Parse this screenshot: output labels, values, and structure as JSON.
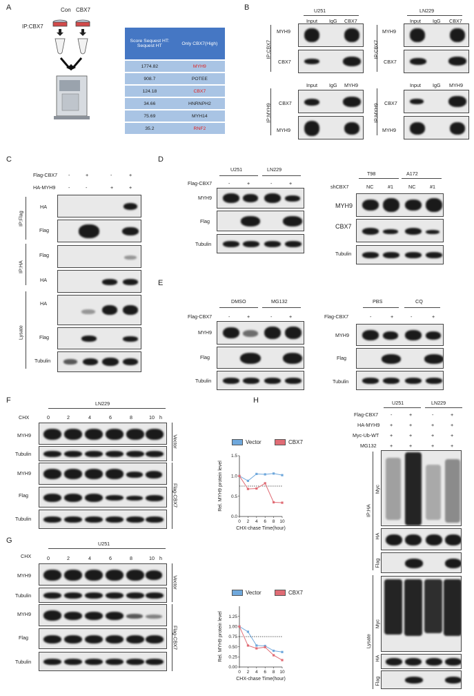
{
  "panels": {
    "A": "A",
    "B": "B",
    "C": "C",
    "D": "D",
    "E": "E",
    "F": "F",
    "G": "G",
    "H": "H"
  },
  "A": {
    "con": "Con",
    "cbx7": "CBX7",
    "ip": "IP:CBX7",
    "table": {
      "header": [
        "Score Sequest HT: Sequest HT",
        "Only CBX7(High)"
      ],
      "rows": [
        {
          "score": "1774.82",
          "protein": "MYH9",
          "highlight": true
        },
        {
          "score": "908.7",
          "protein": "POTEE",
          "highlight": false
        },
        {
          "score": "124.18",
          "protein": "CBX7",
          "highlight": true
        },
        {
          "score": "34.66",
          "protein": "HNRNPH2",
          "highlight": false
        },
        {
          "score": "75.69",
          "protein": "MYH14",
          "highlight": false
        },
        {
          "score": "35.2",
          "protein": "RNF2",
          "highlight": true
        }
      ]
    }
  },
  "B": {
    "u251": "U251",
    "ln229": "LN229",
    "lanes1": [
      "Input",
      "IgG",
      "CBX7"
    ],
    "lanes2": [
      "Input",
      "IgG",
      "MYH9"
    ],
    "ip_cbx7": "IP:CBX7",
    "ip_myh9": "IP:MYH9",
    "row_myh9": "MYH9",
    "row_cbx7": "CBX7"
  },
  "C": {
    "flag_cbx7": "Flag-CBX7",
    "ha_myh9": "HA-MYH9",
    "signs_flag": [
      "-",
      "+",
      "-",
      "+"
    ],
    "signs_ha": [
      "-",
      "-",
      "+",
      "+"
    ],
    "ip_flag": "IP:Flag",
    "ip_ha": "IP:HA",
    "lysate": "Lysate",
    "ha": "HA",
    "flag": "Flag",
    "tubulin": "Tubulin"
  },
  "D": {
    "u251": "U251",
    "ln229": "LN229",
    "t98": "T98",
    "a172": "A172",
    "flag_cbx7": "Flag-CBX7",
    "signs": [
      "-",
      "+",
      "-",
      "+"
    ],
    "shcbx7": "shCBX7",
    "sh_lanes": [
      "NC",
      "#1",
      "NC",
      "#1"
    ],
    "myh9": "MYH9",
    "flag": "Flag",
    "tubulin": "Tubulin",
    "cbx7": "CBX7"
  },
  "E": {
    "dmso": "DMSO",
    "mg132": "MG132",
    "pbs": "PBS",
    "cq": "CQ",
    "flag_cbx7": "Flag-CBX7",
    "signs": [
      "-",
      "+",
      "-",
      "+"
    ],
    "myh9": "MYH9",
    "flag": "Flag",
    "tubulin": "Tubulin"
  },
  "F": {
    "cell": "LN229",
    "chx": "CHX",
    "times": [
      "0",
      "2",
      "4",
      "6",
      "8",
      "10"
    ],
    "h": "h",
    "myh9": "MYH9",
    "tubulin": "Tubulin",
    "flag": "Flag",
    "vector": "Vector",
    "flag_cbx7": "Flag-CBX7"
  },
  "G": {
    "cell": "U251",
    "chx": "CHX",
    "times": [
      "0",
      "2",
      "4",
      "6",
      "8",
      "10"
    ],
    "h": "h",
    "myh9": "MYH9",
    "tubulin": "Tubulin",
    "flag": "Flag",
    "vector": "Vector",
    "flag_cbx7": "Flag-CBX7"
  },
  "H": {
    "u251": "U251",
    "ln229": "LN229",
    "rows": [
      {
        "label": "Flag-CBX7",
        "signs": [
          "-",
          "+",
          "-",
          "+"
        ]
      },
      {
        "label": "HA-MYH9",
        "signs": [
          "+",
          "+",
          "+",
          "+"
        ]
      },
      {
        "label": "Myc-Ub-WT",
        "signs": [
          "+",
          "+",
          "+",
          "+"
        ]
      },
      {
        "label": "MG132",
        "signs": [
          "+",
          "+",
          "+",
          "+"
        ]
      }
    ],
    "ip_ha": "IP:HA",
    "lysate": "Lysate",
    "myc": "Myc",
    "ha": "HA",
    "flag": "Flag"
  },
  "chart_data": [
    {
      "type": "line",
      "panel": "F",
      "x": [
        0,
        2,
        4,
        6,
        8,
        10
      ],
      "series": [
        {
          "name": "Vector",
          "values": [
            1.0,
            0.88,
            1.05,
            1.04,
            1.06,
            1.02
          ],
          "color": "#6fa8dc"
        },
        {
          "name": "CBX7",
          "values": [
            1.0,
            0.68,
            0.69,
            0.82,
            0.35,
            0.34
          ],
          "color": "#e06c75"
        }
      ],
      "reference_line": 0.75,
      "xlabel": "CHX-chase Time(hour)",
      "ylabel": "Rel. MYH9 protein level",
      "xlim": [
        0,
        10
      ],
      "ylim": [
        0,
        1.5
      ],
      "xticks": [
        "0",
        "2",
        "4",
        "6",
        "8",
        "10"
      ],
      "yticks": [
        "0.0",
        "0.5",
        "1.0",
        "1.5"
      ],
      "legend": "top"
    },
    {
      "type": "line",
      "panel": "G",
      "x": [
        0,
        2,
        4,
        6,
        8,
        10
      ],
      "series": [
        {
          "name": "Vector",
          "values": [
            1.0,
            0.87,
            0.53,
            0.52,
            0.4,
            0.37
          ],
          "color": "#6fa8dc"
        },
        {
          "name": "CBX7",
          "values": [
            1.0,
            0.53,
            0.46,
            0.49,
            0.29,
            0.17
          ],
          "color": "#e06c75"
        }
      ],
      "reference_line": 0.75,
      "xlabel": "CHX-chase Time(hour)",
      "ylabel": "Rel. MYH9 protein level",
      "xlim": [
        0,
        10
      ],
      "ylim": [
        0,
        1.5
      ],
      "xticks": [
        "0",
        "2",
        "4",
        "6",
        "8",
        "10"
      ],
      "yticks": [
        "0.00",
        "0.25",
        "0.50",
        "0.75",
        "1.00",
        "1.25"
      ],
      "legend": "top"
    }
  ]
}
